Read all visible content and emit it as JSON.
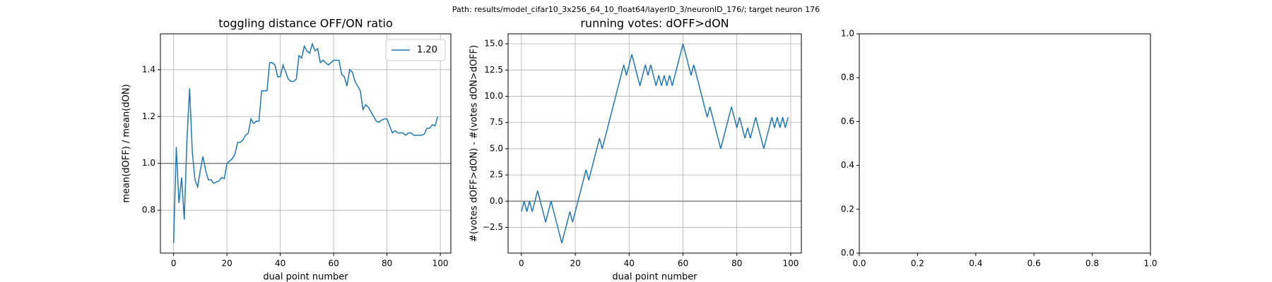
{
  "suptitle": "Path: results/model_cifar10_3x256_64_10_float64/layerID_3/neuronID_176/; target neuron 176",
  "chart_data": [
    {
      "type": "line",
      "title": "toggling distance OFF/ON ratio",
      "xlabel": "dual point number",
      "ylabel": "mean(dOFF) / mean(dON)",
      "xlim": [
        -4.95,
        103.95
      ],
      "ylim": [
        0.617,
        1.553
      ],
      "xticks": [
        0,
        20,
        40,
        60,
        80,
        100
      ],
      "yticks": [
        0.8,
        {
          "value": 1.0,
          "label": "1.0"
        },
        1.2,
        1.4
      ],
      "grid": true,
      "legend": "upper right",
      "hline": {
        "value": 1,
        "color": "#808080"
      },
      "x": [
        0,
        1,
        2,
        3,
        4,
        5,
        6,
        7,
        8,
        9,
        10,
        11,
        12,
        13,
        14,
        15,
        16,
        17,
        18,
        19,
        20,
        21,
        22,
        23,
        24,
        25,
        26,
        27,
        28,
        29,
        30,
        31,
        32,
        33,
        34,
        35,
        36,
        37,
        38,
        39,
        40,
        41,
        42,
        43,
        44,
        45,
        46,
        47,
        48,
        49,
        50,
        51,
        52,
        53,
        54,
        55,
        56,
        57,
        58,
        59,
        60,
        61,
        62,
        63,
        64,
        65,
        66,
        67,
        68,
        69,
        70,
        71,
        72,
        73,
        74,
        75,
        76,
        77,
        78,
        79,
        80,
        81,
        82,
        83,
        84,
        85,
        86,
        87,
        88,
        89,
        90,
        91,
        92,
        93,
        94,
        95,
        96,
        97,
        98,
        99
      ],
      "series": [
        {
          "name": "1.20",
          "color": "#1f77b4",
          "values": [
            0.66,
            1.07,
            0.83,
            0.94,
            0.76,
            1.1,
            1.32,
            1.05,
            0.93,
            0.9,
            0.97,
            1.03,
            0.97,
            0.93,
            0.93,
            0.915,
            0.92,
            0.925,
            0.94,
            0.935,
            1.0,
            1.01,
            1.02,
            1.04,
            1.09,
            1.09,
            1.1,
            1.12,
            1.13,
            1.19,
            1.17,
            1.18,
            1.18,
            1.31,
            1.31,
            1.31,
            1.43,
            1.43,
            1.42,
            1.37,
            1.37,
            1.42,
            1.39,
            1.36,
            1.35,
            1.35,
            1.36,
            1.46,
            1.45,
            1.5,
            1.48,
            1.47,
            1.51,
            1.48,
            1.49,
            1.43,
            1.44,
            1.43,
            1.42,
            1.43,
            1.44,
            1.44,
            1.44,
            1.38,
            1.37,
            1.33,
            1.4,
            1.39,
            1.35,
            1.33,
            1.31,
            1.23,
            1.25,
            1.24,
            1.22,
            1.2,
            1.18,
            1.175,
            1.185,
            1.19,
            1.19,
            1.16,
            1.13,
            1.14,
            1.13,
            1.13,
            1.13,
            1.12,
            1.13,
            1.13,
            1.12,
            1.12,
            1.12,
            1.12,
            1.125,
            1.15,
            1.15,
            1.165,
            1.16,
            1.2
          ]
        }
      ]
    },
    {
      "type": "line",
      "title": "running votes: dOFF>dON",
      "xlabel": "dual point number",
      "ylabel": "#(votes dOFF>dON) - #(votes dON>dOFF)",
      "xlim": [
        -4.95,
        103.95
      ],
      "ylim": [
        -4.95,
        15.95
      ],
      "xticks": [
        0,
        20,
        40,
        60,
        80,
        100
      ],
      "yticks": [
        {
          "value": -2.5,
          "label": "−2.5"
        },
        {
          "value": 0,
          "label": "0.0"
        },
        2.5,
        {
          "value": 5,
          "label": "5.0"
        },
        7.5,
        {
          "value": 10,
          "label": "10.0"
        },
        12.5,
        {
          "value": 15,
          "label": "15.0"
        }
      ],
      "grid": true,
      "hline": {
        "value": 0,
        "color": "#808080"
      },
      "x": [
        0,
        1,
        2,
        3,
        4,
        5,
        6,
        7,
        8,
        9,
        10,
        11,
        12,
        13,
        14,
        15,
        16,
        17,
        18,
        19,
        20,
        21,
        22,
        23,
        24,
        25,
        26,
        27,
        28,
        29,
        30,
        31,
        32,
        33,
        34,
        35,
        36,
        37,
        38,
        39,
        40,
        41,
        42,
        43,
        44,
        45,
        46,
        47,
        48,
        49,
        50,
        51,
        52,
        53,
        54,
        55,
        56,
        57,
        58,
        59,
        60,
        61,
        62,
        63,
        64,
        65,
        66,
        67,
        68,
        69,
        70,
        71,
        72,
        73,
        74,
        75,
        76,
        77,
        78,
        79,
        80,
        81,
        82,
        83,
        84,
        85,
        86,
        87,
        88,
        89,
        90,
        91,
        92,
        93,
        94,
        95,
        96,
        97,
        98,
        99
      ],
      "series": [
        {
          "color": "#1f77b4",
          "values": [
            -1,
            0,
            -1,
            0,
            -1,
            0,
            1,
            0,
            -1,
            -2,
            -1,
            0,
            -1,
            -2,
            -3,
            -4,
            -3,
            -2,
            -1,
            -2,
            -1,
            0,
            1,
            2,
            3,
            2,
            3,
            4,
            5,
            6,
            5,
            6,
            7,
            8,
            9,
            10,
            11,
            12,
            13,
            12,
            13,
            14,
            13,
            12,
            11,
            12,
            13,
            12,
            13,
            12,
            11,
            12,
            11,
            12,
            11,
            12,
            11,
            12,
            13,
            14,
            15,
            14,
            13,
            12,
            13,
            12,
            11,
            10,
            9,
            8,
            9,
            8,
            7,
            6,
            5,
            6,
            7,
            8,
            9,
            8,
            7,
            8,
            7,
            6,
            7,
            6,
            7,
            8,
            7,
            6,
            5,
            6,
            7,
            8,
            7,
            8,
            7,
            8,
            7,
            8
          ]
        }
      ]
    },
    {
      "type": "line",
      "xlim": [
        0,
        1
      ],
      "ylim": [
        0,
        1
      ],
      "xticks": [
        {
          "value": 0,
          "label": "0.0"
        },
        0.2,
        0.4,
        0.6,
        0.8,
        {
          "value": 1,
          "label": "1.0"
        }
      ],
      "yticks": [
        {
          "value": 0,
          "label": "0.0"
        },
        0.2,
        0.4,
        0.6,
        0.8,
        {
          "value": 1,
          "label": "1.0"
        }
      ],
      "grid": false
    }
  ]
}
